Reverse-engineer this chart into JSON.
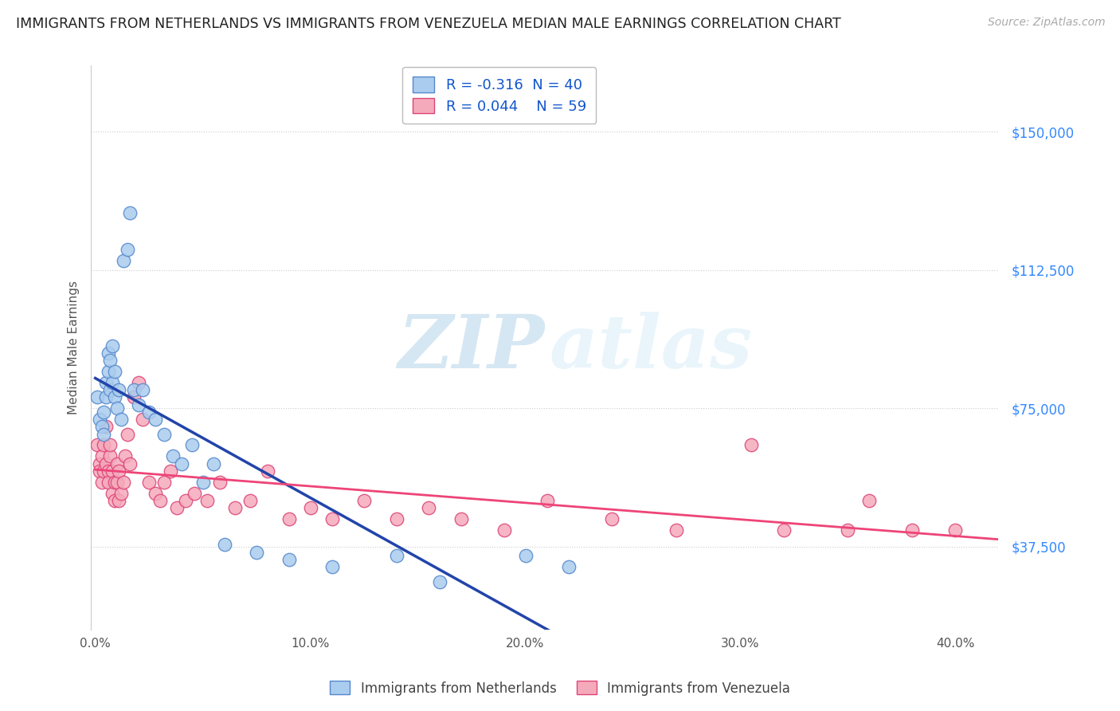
{
  "title": "IMMIGRANTS FROM NETHERLANDS VS IMMIGRANTS FROM VENEZUELA MEDIAN MALE EARNINGS CORRELATION CHART",
  "source": "Source: ZipAtlas.com",
  "ylabel": "Median Male Earnings",
  "xlim": [
    -0.002,
    0.42
  ],
  "ylim": [
    15000,
    168000
  ],
  "yticks": [
    37500,
    75000,
    112500,
    150000
  ],
  "ytick_labels": [
    "$37,500",
    "$75,000",
    "$112,500",
    "$150,000"
  ],
  "xticks": [
    0.0,
    0.1,
    0.2,
    0.3,
    0.4
  ],
  "xtick_labels": [
    "0.0%",
    "10.0%",
    "20.0%",
    "30.0%",
    "40.0%"
  ],
  "netherlands_color": "#aaccee",
  "venezuela_color": "#f5aabb",
  "netherlands_edge": "#5588cc",
  "venezuela_edge": "#dd4477",
  "netherlands_line_color": "#2244aa",
  "venezuela_line_color": "#ee4477",
  "dashed_line_color": "#9999bb",
  "R_netherlands": -0.316,
  "N_netherlands": 40,
  "R_venezuela": 0.044,
  "N_venezuela": 59,
  "legend_label_netherlands": "Immigrants from Netherlands",
  "legend_label_venezuela": "Immigrants from Venezuela",
  "watermark_zip": "ZIP",
  "watermark_atlas": "atlas",
  "background_color": "#ffffff",
  "nl_x": [
    0.001,
    0.002,
    0.003,
    0.004,
    0.004,
    0.005,
    0.005,
    0.006,
    0.006,
    0.007,
    0.007,
    0.008,
    0.008,
    0.009,
    0.009,
    0.01,
    0.011,
    0.012,
    0.013,
    0.015,
    0.016,
    0.018,
    0.02,
    0.022,
    0.025,
    0.028,
    0.032,
    0.036,
    0.04,
    0.045,
    0.05,
    0.055,
    0.06,
    0.075,
    0.09,
    0.11,
    0.14,
    0.16,
    0.2,
    0.22
  ],
  "nl_y": [
    78000,
    72000,
    70000,
    68000,
    74000,
    82000,
    78000,
    90000,
    85000,
    88000,
    80000,
    92000,
    82000,
    85000,
    78000,
    75000,
    80000,
    72000,
    115000,
    118000,
    128000,
    80000,
    76000,
    80000,
    74000,
    72000,
    68000,
    62000,
    60000,
    65000,
    55000,
    60000,
    38000,
    36000,
    34000,
    32000,
    35000,
    28000,
    35000,
    32000
  ],
  "ve_x": [
    0.001,
    0.002,
    0.002,
    0.003,
    0.003,
    0.004,
    0.004,
    0.005,
    0.005,
    0.006,
    0.006,
    0.007,
    0.007,
    0.008,
    0.008,
    0.009,
    0.009,
    0.01,
    0.01,
    0.011,
    0.011,
    0.012,
    0.013,
    0.014,
    0.015,
    0.016,
    0.018,
    0.02,
    0.022,
    0.025,
    0.028,
    0.03,
    0.032,
    0.035,
    0.038,
    0.042,
    0.046,
    0.052,
    0.058,
    0.065,
    0.072,
    0.08,
    0.09,
    0.1,
    0.11,
    0.125,
    0.14,
    0.155,
    0.17,
    0.19,
    0.21,
    0.24,
    0.27,
    0.305,
    0.32,
    0.35,
    0.36,
    0.38,
    0.4
  ],
  "ve_y": [
    65000,
    60000,
    58000,
    55000,
    62000,
    58000,
    65000,
    60000,
    70000,
    58000,
    55000,
    62000,
    65000,
    58000,
    52000,
    55000,
    50000,
    60000,
    55000,
    58000,
    50000,
    52000,
    55000,
    62000,
    68000,
    60000,
    78000,
    82000,
    72000,
    55000,
    52000,
    50000,
    55000,
    58000,
    48000,
    50000,
    52000,
    50000,
    55000,
    48000,
    50000,
    58000,
    45000,
    48000,
    45000,
    50000,
    45000,
    48000,
    45000,
    42000,
    50000,
    45000,
    42000,
    65000,
    42000,
    42000,
    50000,
    42000,
    42000
  ]
}
